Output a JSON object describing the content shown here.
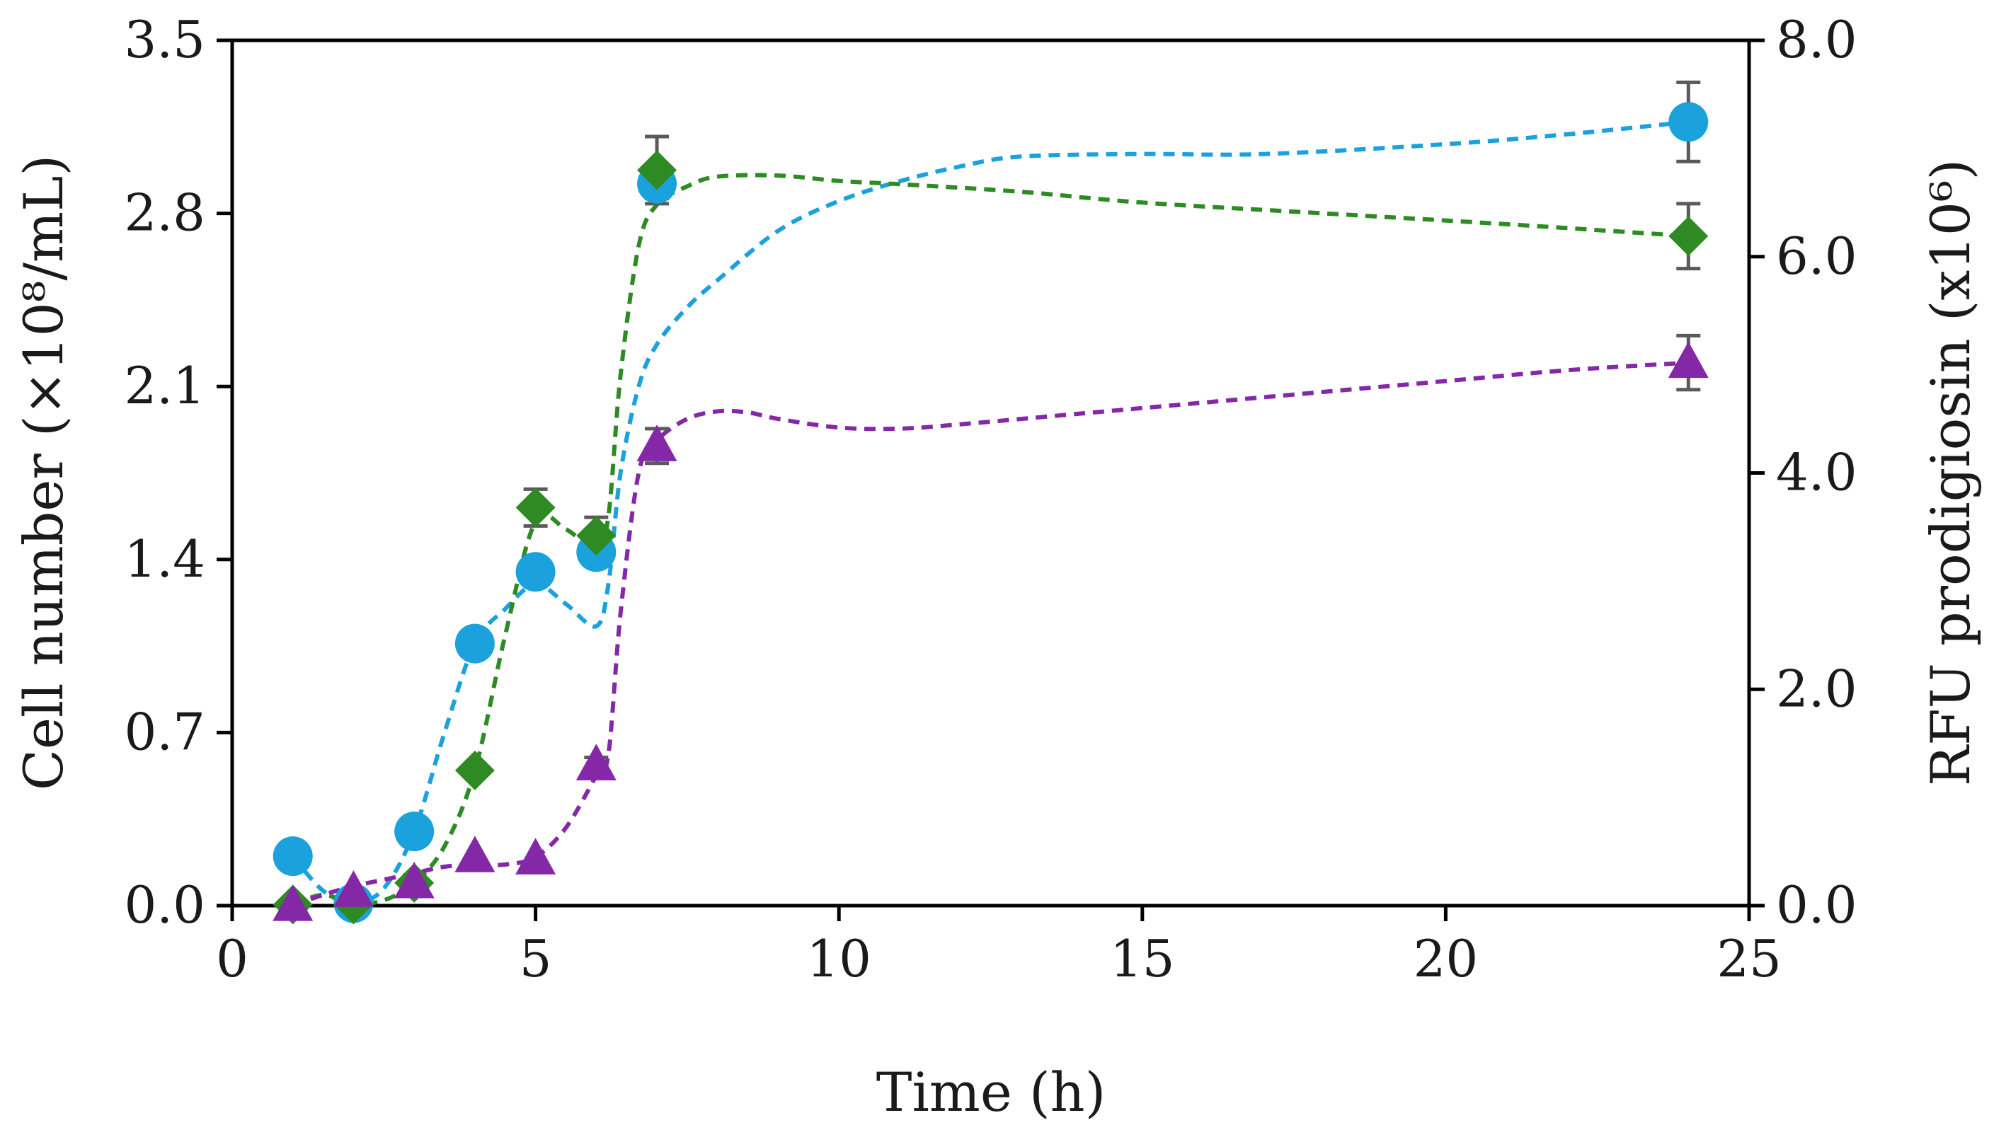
{
  "chart_data": {
    "type": "line",
    "x_axis": {
      "label": "Time (h)",
      "range": [
        0,
        25
      ],
      "ticks": [
        0,
        5,
        10,
        15,
        20,
        25
      ],
      "tick_labels": [
        "0",
        "5",
        "10",
        "15",
        "20",
        "25"
      ]
    },
    "y_axis_left": {
      "label": "Cell number (×10⁸/mL)",
      "range": [
        0,
        3.5
      ],
      "ticks": [
        0,
        0.7,
        1.4,
        2.1,
        2.8,
        3.5
      ],
      "tick_labels": [
        "0.0",
        "0.7",
        "1.4",
        "2.1",
        "2.8",
        "3.5"
      ]
    },
    "y_axis_right": {
      "label": "RFU prodigiosin (x10⁶)",
      "range": [
        0,
        8
      ],
      "ticks": [
        0,
        2,
        4,
        6,
        8
      ],
      "tick_labels": [
        "0.0",
        "2.0",
        "4.0",
        "6.0",
        "8.0"
      ]
    },
    "grid": false,
    "legend": "none",
    "series": [
      {
        "name": "blue circles",
        "marker": "circle",
        "color": "#1ba1dc",
        "axis": "left",
        "x": [
          1,
          2,
          3,
          4,
          5,
          6,
          7,
          24
        ],
        "y": [
          0.2,
          0.01,
          0.3,
          1.06,
          1.35,
          1.43,
          2.92,
          3.17
        ],
        "err": [
          0,
          0,
          0,
          0,
          0.05,
          0.05,
          0.06,
          0.16
        ],
        "trend": [
          [
            1,
            0.2
          ],
          [
            1.5,
            0.06
          ],
          [
            2,
            0.01
          ],
          [
            2.5,
            0.07
          ],
          [
            3,
            0.3
          ],
          [
            3.5,
            0.7
          ],
          [
            4,
            1.06
          ],
          [
            4.5,
            1.2
          ],
          [
            5,
            1.3
          ],
          [
            5.5,
            1.22
          ],
          [
            6,
            1.13
          ],
          [
            6.2,
            1.3
          ],
          [
            6.4,
            1.75
          ],
          [
            6.7,
            2.1
          ],
          [
            7,
            2.27
          ],
          [
            7.5,
            2.42
          ],
          [
            8,
            2.53
          ],
          [
            9,
            2.73
          ],
          [
            10,
            2.85
          ],
          [
            11,
            2.93
          ],
          [
            12,
            2.99
          ],
          [
            13,
            3.03
          ],
          [
            15,
            3.04
          ],
          [
            17,
            3.04
          ],
          [
            20,
            3.08
          ],
          [
            22,
            3.12
          ],
          [
            24,
            3.17
          ]
        ]
      },
      {
        "name": "green diamonds",
        "marker": "diamond",
        "color": "#2e8b24",
        "axis": "right",
        "x": [
          1,
          2,
          3,
          4,
          5,
          6,
          7,
          24
        ],
        "y": [
          0.01,
          0.01,
          0.21,
          1.25,
          3.68,
          3.42,
          6.8,
          6.19
        ],
        "err": [
          0,
          0,
          0,
          0,
          0.17,
          0.17,
          0.31,
          0.3
        ],
        "trend": [
          [
            1,
            0.01
          ],
          [
            1.5,
            0.1
          ],
          [
            2,
            0.02
          ],
          [
            2.5,
            0.05
          ],
          [
            3,
            0.21
          ],
          [
            3.5,
            0.55
          ],
          [
            4,
            1.25
          ],
          [
            4.5,
            2.5
          ],
          [
            5,
            3.55
          ],
          [
            5.5,
            3.48
          ],
          [
            6,
            3.3
          ],
          [
            6.2,
            3.6
          ],
          [
            6.4,
            4.9
          ],
          [
            6.7,
            6.1
          ],
          [
            7,
            6.48
          ],
          [
            7.5,
            6.65
          ],
          [
            8,
            6.74
          ],
          [
            9,
            6.75
          ],
          [
            10,
            6.7
          ],
          [
            11,
            6.67
          ],
          [
            13,
            6.6
          ],
          [
            15,
            6.5
          ],
          [
            18,
            6.4
          ],
          [
            21,
            6.3
          ],
          [
            24,
            6.19
          ]
        ]
      },
      {
        "name": "purple triangles",
        "marker": "triangle",
        "color": "#8428a8",
        "axis": "right",
        "x": [
          1,
          2,
          3,
          4,
          5,
          6,
          7,
          24
        ],
        "y": [
          0.0,
          0.13,
          0.21,
          0.45,
          0.43,
          1.3,
          4.25,
          5.02
        ],
        "err": [
          0,
          0,
          0,
          0,
          0,
          0.07,
          0.16,
          0.25
        ],
        "trend": [
          [
            1,
            0.0
          ],
          [
            1.5,
            0.1
          ],
          [
            2,
            0.18
          ],
          [
            2.5,
            0.24
          ],
          [
            3,
            0.3
          ],
          [
            3.5,
            0.36
          ],
          [
            4,
            0.38
          ],
          [
            4.5,
            0.38
          ],
          [
            5,
            0.45
          ],
          [
            5.5,
            0.72
          ],
          [
            6,
            1.2
          ],
          [
            6.2,
            1.4
          ],
          [
            6.4,
            2.7
          ],
          [
            6.7,
            4.0
          ],
          [
            7,
            4.3
          ],
          [
            7.5,
            4.5
          ],
          [
            8,
            4.57
          ],
          [
            8.5,
            4.56
          ],
          [
            9,
            4.5
          ],
          [
            10,
            4.42
          ],
          [
            11,
            4.41
          ],
          [
            12,
            4.45
          ],
          [
            14,
            4.55
          ],
          [
            16,
            4.65
          ],
          [
            18,
            4.75
          ],
          [
            20,
            4.85
          ],
          [
            22,
            4.95
          ],
          [
            24,
            5.02
          ]
        ]
      }
    ]
  }
}
